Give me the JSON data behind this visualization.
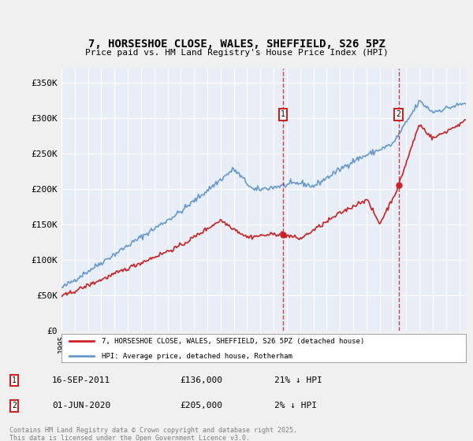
{
  "title": "7, HORSESHOE CLOSE, WALES, SHEFFIELD, S26 5PZ",
  "subtitle": "Price paid vs. HM Land Registry's House Price Index (HPI)",
  "ylim": [
    0,
    370000
  ],
  "xlim_start": 1995.0,
  "xlim_end": 2025.5,
  "plot_bg_color": "#e8eef7",
  "grid_color": "#ffffff",
  "hpi_color": "#6699cc",
  "price_color": "#cc2222",
  "marker1_date": 2011.71,
  "marker2_date": 2020.42,
  "marker1_price": 136000,
  "marker2_price": 205000,
  "marker1_label": "16-SEP-2011",
  "marker1_value": "£136,000",
  "marker1_pct": "21% ↓ HPI",
  "marker2_label": "01-JUN-2020",
  "marker2_value": "£205,000",
  "marker2_pct": "2% ↓ HPI",
  "legend_line1": "7, HORSESHOE CLOSE, WALES, SHEFFIELD, S26 5PZ (detached house)",
  "legend_line2": "HPI: Average price, detached house, Rotherham",
  "footnote": "Contains HM Land Registry data © Crown copyright and database right 2025.\nThis data is licensed under the Open Government Licence v3.0.",
  "yticks": [
    0,
    50000,
    100000,
    150000,
    200000,
    250000,
    300000,
    350000
  ],
  "ytick_labels": [
    "£0",
    "£50K",
    "£100K",
    "£150K",
    "£200K",
    "£250K",
    "£300K",
    "£350K"
  ]
}
